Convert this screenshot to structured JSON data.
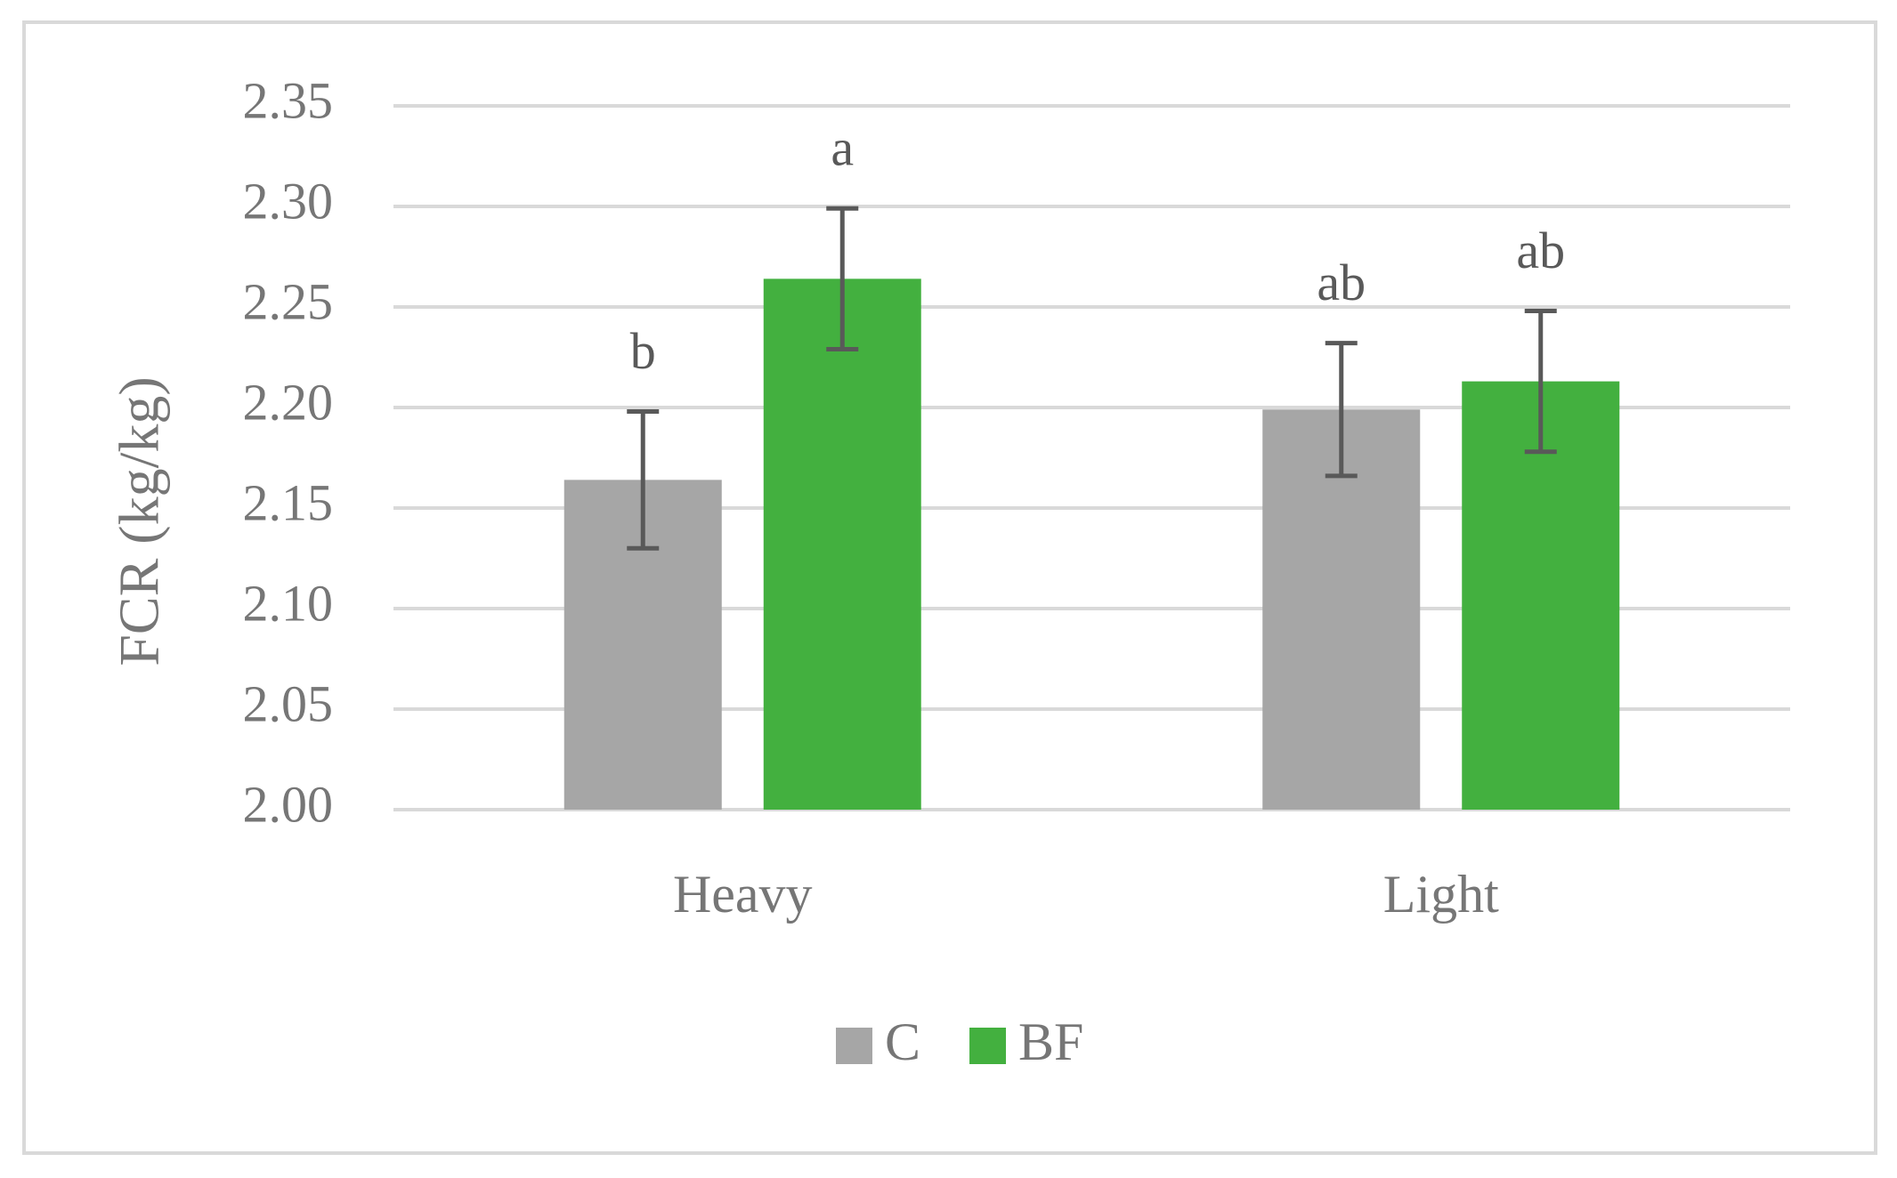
{
  "chart_data": {
    "type": "bar",
    "y_label": "FCR (kg/kg)",
    "categories": [
      "Heavy",
      "Light"
    ],
    "series": [
      {
        "name": "C",
        "color": "#a6a6a6",
        "values": [
          2.164,
          2.199
        ],
        "errors": [
          0.034,
          0.033
        ],
        "letters": [
          "b",
          "ab"
        ]
      },
      {
        "name": "BF",
        "color": "#43b03f",
        "values": [
          2.264,
          2.213
        ],
        "errors": [
          0.035,
          0.035
        ],
        "letters": [
          "a",
          "ab"
        ]
      }
    ],
    "ylim": [
      2.0,
      2.35
    ],
    "yticks": [
      {
        "value": 2.0,
        "label": "2.00"
      },
      {
        "value": 2.05,
        "label": "2.05"
      },
      {
        "value": 2.1,
        "label": "2.10"
      },
      {
        "value": 2.15,
        "label": "2.15"
      },
      {
        "value": 2.2,
        "label": "2.20"
      },
      {
        "value": 2.25,
        "label": "2.25"
      },
      {
        "value": 2.3,
        "label": "2.30"
      },
      {
        "value": 2.35,
        "label": "2.35"
      }
    ],
    "grid": true,
    "legend": "bottom"
  }
}
